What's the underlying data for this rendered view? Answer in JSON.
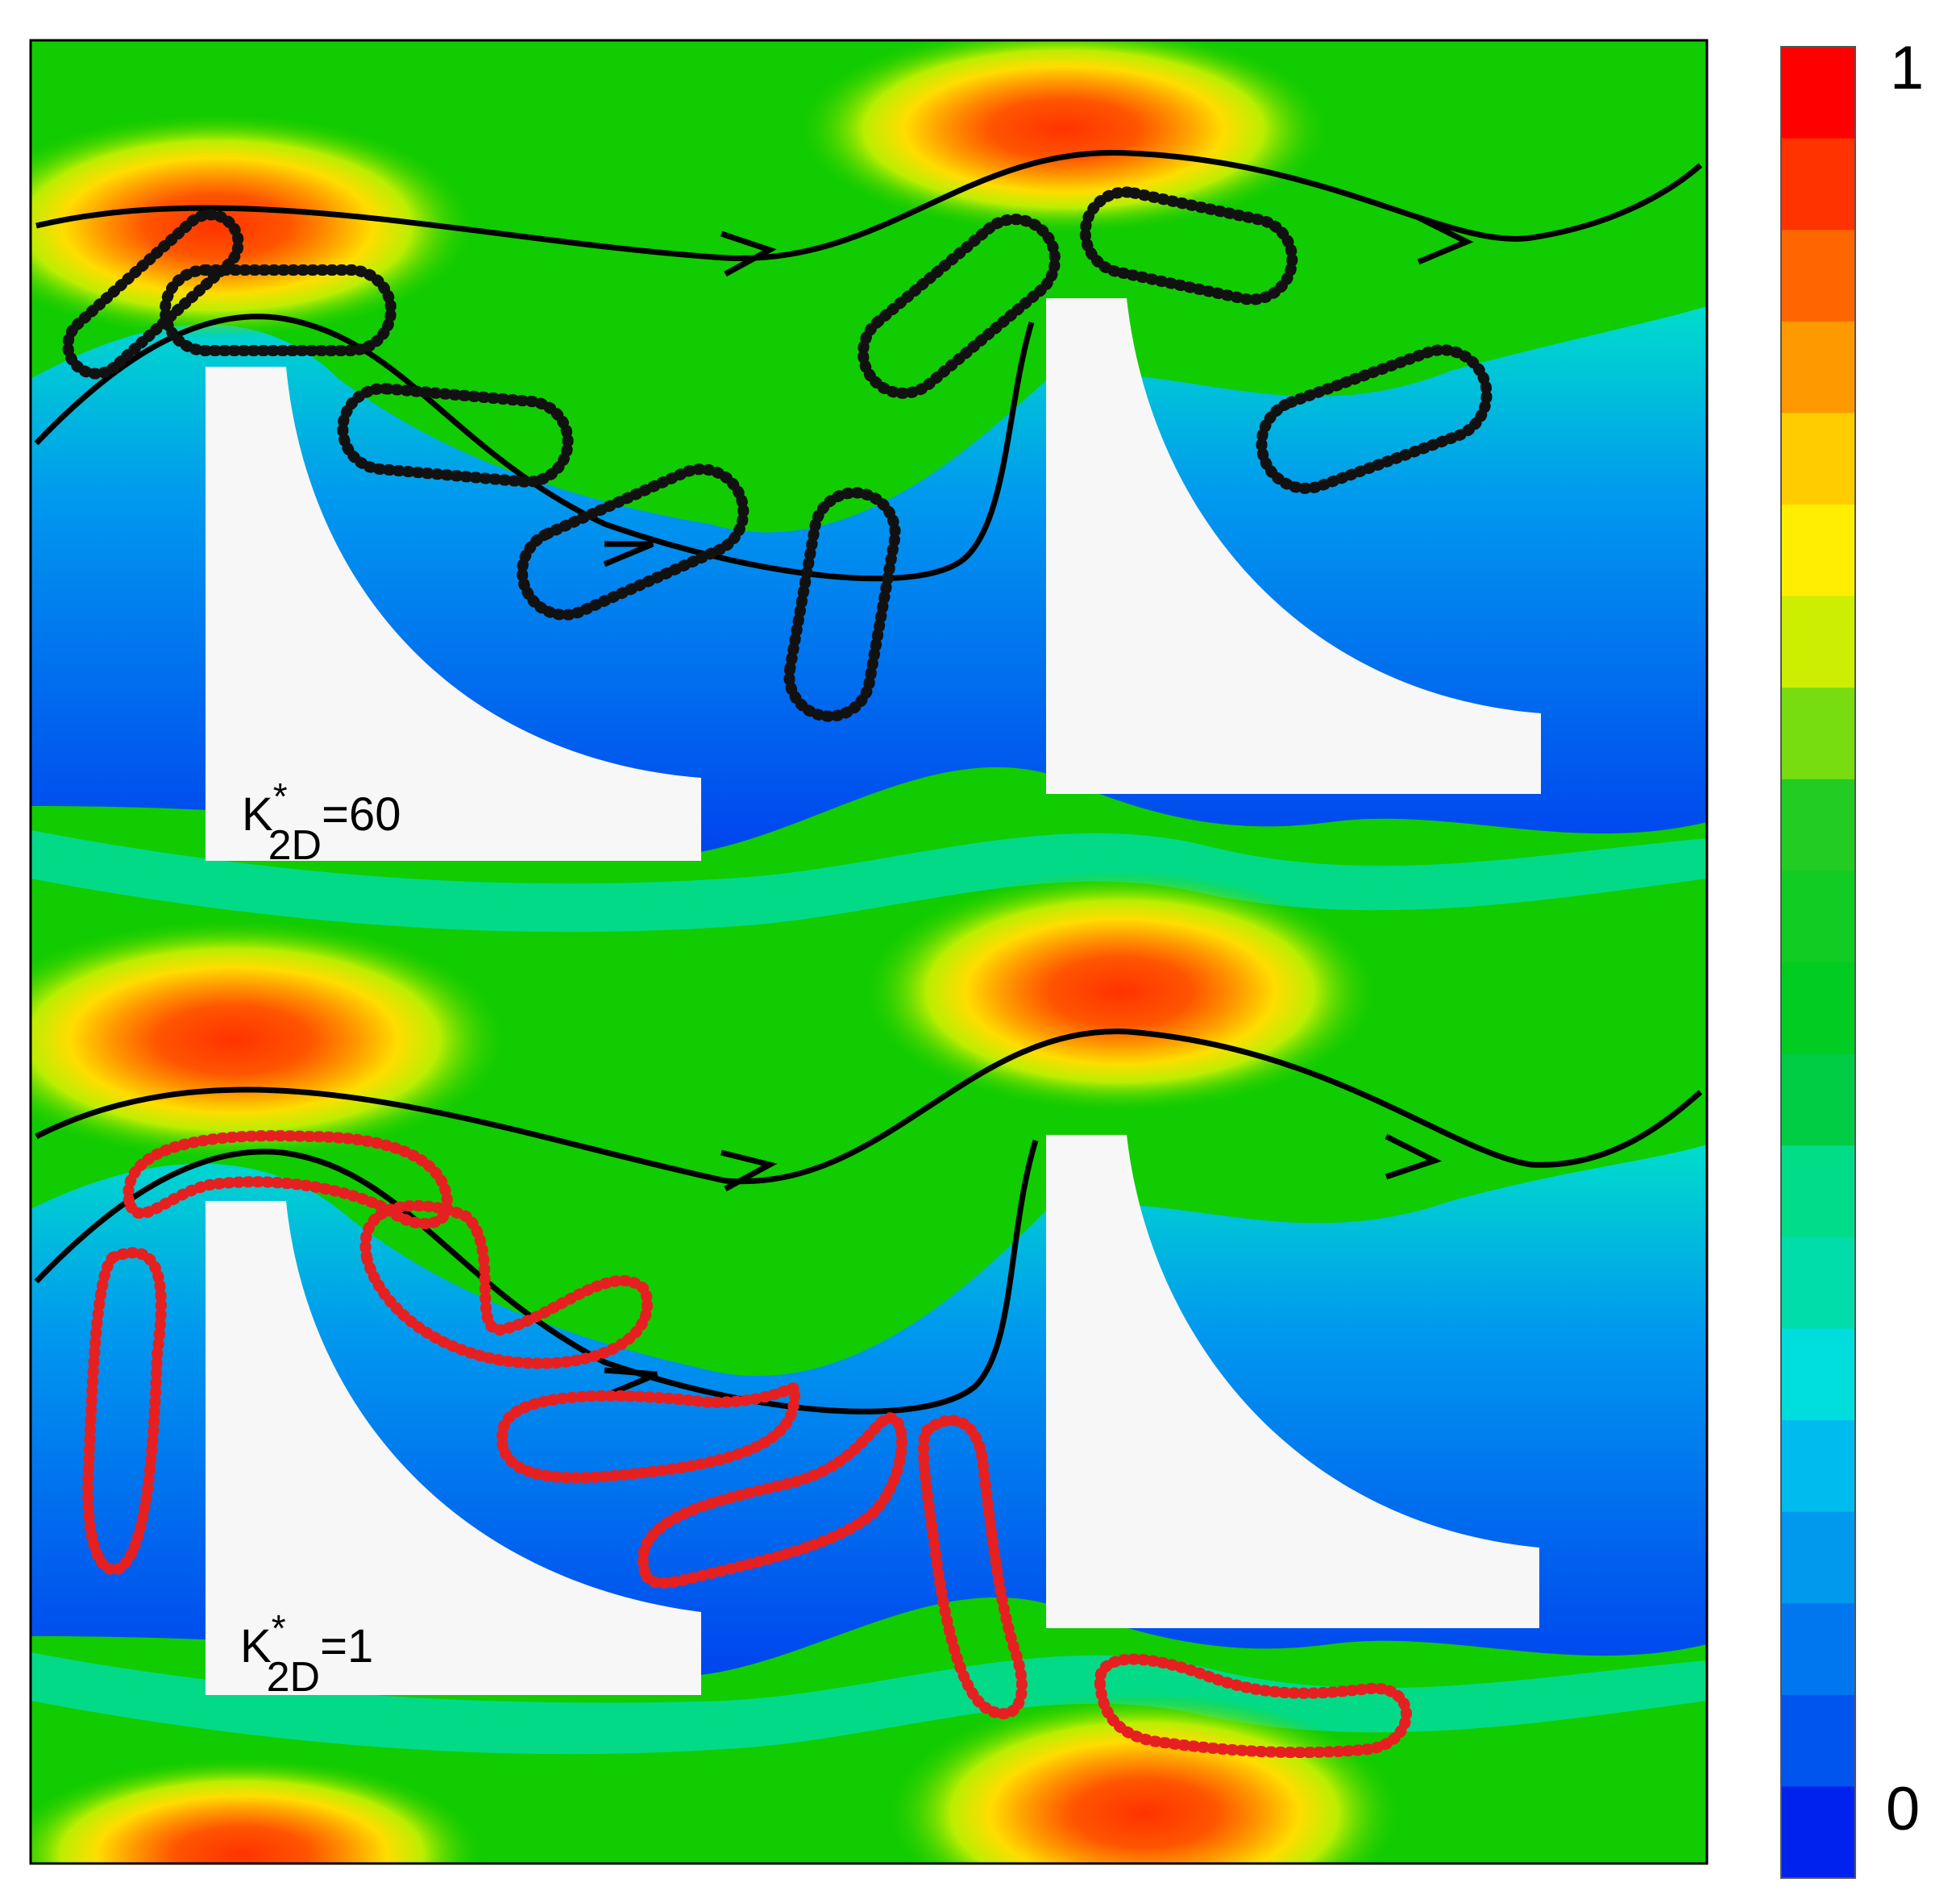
{
  "figure": {
    "colorbar": {
      "max_label": "1",
      "min_label": "0",
      "colors": [
        "#ff0000",
        "#ff3300",
        "#ff6600",
        "#ff9900",
        "#ffcc00",
        "#ffee00",
        "#ccee00",
        "#77dd11",
        "#22cc22",
        "#11cc22",
        "#00cc22",
        "#00cc44",
        "#00dd88",
        "#00ddaa",
        "#00dddd",
        "#00bbee",
        "#0099ee",
        "#0077ee",
        "#0055ee",
        "#0022ee"
      ]
    },
    "panels": [
      {
        "id": "top",
        "label_base": "K",
        "label_sup": "*",
        "label_sub": "2D",
        "label_value": "=60",
        "chain_color": "#111111"
      },
      {
        "id": "bottom",
        "label_base": "K",
        "label_sup": "*",
        "label_sub": "2D",
        "label_value": "=1",
        "chain_color": "#e62020"
      }
    ],
    "colors": {
      "background_field": "#00cc00",
      "high": "#ff4400",
      "low": "#0044ee",
      "streamline": "#000000",
      "obstacle": "#f7f7f7"
    }
  }
}
